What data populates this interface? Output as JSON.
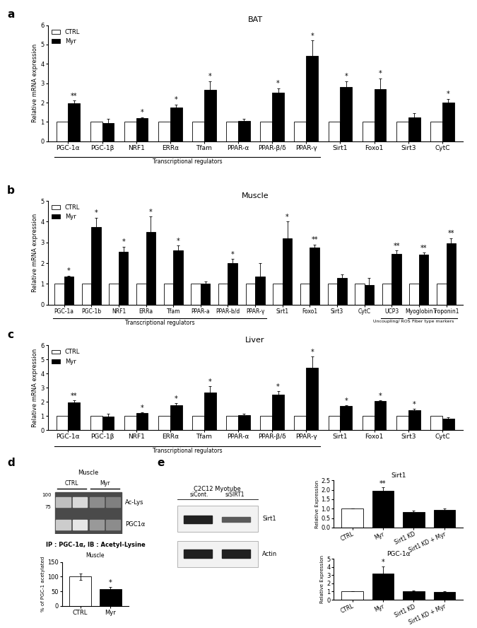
{
  "chart_data": [
    {
      "type": "bar",
      "title": "BAT",
      "annotations": [
        "a"
      ],
      "y_label": "Relative mRNA expression",
      "categories": [
        "PGC-1α",
        "PGC-1β",
        "NRF1",
        "ERRα",
        "Tfam",
        "PPAR-α",
        "PPAR-β/δ",
        "PPAR-γ",
        "Sirt1",
        "Foxo1",
        "Sirt3",
        "CytC"
      ],
      "series": [
        {
          "name": "CTRL",
          "color": "#ffffff",
          "values": [
            1,
            1,
            1,
            1,
            1,
            1,
            1,
            1,
            1,
            1,
            1,
            1
          ]
        },
        {
          "name": "Myr",
          "color": "#000000",
          "values": [
            1.95,
            0.95,
            1.2,
            1.75,
            2.65,
            1.05,
            2.5,
            4.4,
            2.8,
            2.7,
            1.25,
            2.0
          ],
          "errors": [
            0.15,
            0.2,
            0.05,
            0.15,
            0.45,
            0.1,
            0.25,
            0.8,
            0.3,
            0.55,
            0.2,
            0.2
          ],
          "significance": [
            "**",
            "",
            "*",
            "*",
            "*",
            "",
            "*",
            "*",
            "*",
            "*",
            "",
            "*"
          ]
        }
      ],
      "groups": [
        {
          "label": "Transcriptional regulators",
          "categories": [
            "PGC-1α",
            "PGC-1β",
            "NRF1",
            "ERRα",
            "Tfam",
            "PPAR-α",
            "PPAR-β/δ",
            "PPAR-γ"
          ]
        }
      ],
      "ylim": [
        0,
        6
      ],
      "yticks": [
        0,
        1,
        2,
        3,
        4,
        5,
        6
      ],
      "legend": "upper left"
    },
    {
      "type": "bar",
      "title": "Muscle",
      "annotations": [
        "b"
      ],
      "y_label": "Relative mRNA expression",
      "categories": [
        "PGC-1a",
        "PGC-1b",
        "NRF1",
        "ERRa",
        "Tfam",
        "PPAR-a",
        "PPAR-b/d",
        "PPAR-γ",
        "Sirt1",
        "Foxo1",
        "Sirt3",
        "CytC",
        "UCP3",
        "Myoglobin",
        "Troponin1"
      ],
      "series": [
        {
          "name": "CTRL",
          "color": "#ffffff",
          "values": [
            1,
            1,
            1,
            1,
            1,
            1,
            1,
            1,
            1,
            1,
            1,
            1,
            1,
            1,
            1
          ]
        },
        {
          "name": "Myr",
          "color": "#000000",
          "values": [
            1.35,
            3.75,
            2.55,
            3.5,
            2.6,
            1.0,
            2.0,
            1.35,
            3.2,
            2.75,
            1.3,
            0.95,
            2.45,
            2.4,
            2.95
          ],
          "errors": [
            0.05,
            0.45,
            0.25,
            0.75,
            0.25,
            0.1,
            0.2,
            0.65,
            0.8,
            0.15,
            0.15,
            0.35,
            0.15,
            0.1,
            0.25
          ],
          "significance": [
            "*",
            "*",
            "*",
            "*",
            "*",
            "",
            "*",
            "",
            "*",
            "**",
            "",
            "",
            "**",
            "**",
            "**"
          ]
        }
      ],
      "groups": [
        {
          "label": "Transcriptional regulators",
          "categories": [
            "PGC-1a",
            "PGC-1b",
            "NRF1",
            "ERRa",
            "Tfam",
            "PPAR-a",
            "PPAR-b/d",
            "PPAR-γ"
          ]
        },
        {
          "label": "Uncoupling/ ROS",
          "categories": [
            "UCP3"
          ]
        },
        {
          "label": "Fiber type markers",
          "categories": [
            "Myoglobin",
            "Troponin1"
          ]
        }
      ],
      "ylim": [
        0,
        5
      ],
      "yticks": [
        0,
        1,
        2,
        3,
        4,
        5
      ],
      "legend": "upper left"
    },
    {
      "type": "bar",
      "title": "Liver",
      "annotations": [
        "c"
      ],
      "y_label": "Relative mRNA expression",
      "categories": [
        "PGC-1α",
        "PGC-1β",
        "NRF1",
        "ERRα",
        "Tfam",
        "PPAR-α",
        "PPAR-β/δ",
        "PPAR-γ",
        "Sirt1",
        "Foxo1",
        "Sirt3",
        "CytC"
      ],
      "series": [
        {
          "name": "CTRL",
          "color": "#ffffff",
          "values": [
            1,
            1,
            1,
            1,
            1,
            1,
            1,
            1,
            1,
            1,
            1,
            1
          ]
        },
        {
          "name": "Myr",
          "color": "#000000",
          "values": [
            1.95,
            0.95,
            1.2,
            1.75,
            2.65,
            1.05,
            2.5,
            4.4,
            1.7,
            2.05,
            1.4,
            0.8
          ],
          "errors": [
            0.15,
            0.2,
            0.05,
            0.15,
            0.45,
            0.1,
            0.25,
            0.8,
            0.05,
            0.05,
            0.1,
            0.1
          ],
          "significance": [
            "**",
            "",
            "*",
            "*",
            "*",
            "",
            "*",
            "*",
            "*",
            "*",
            "*",
            ""
          ]
        }
      ],
      "groups": [
        {
          "label": "Transcriptional regulators",
          "categories": [
            "PGC-1α",
            "PGC-1β",
            "NRF1",
            "ERRα",
            "Tfam",
            "PPAR-α",
            "PPAR-β/δ",
            "PPAR-γ"
          ]
        }
      ],
      "ylim": [
        0,
        6
      ],
      "yticks": [
        0,
        1,
        2,
        3,
        4,
        5,
        6
      ],
      "legend": "upper left"
    },
    {
      "type": "bar",
      "title": "IP : PGC-1α, IB : Acetyl-Lysine",
      "subtitle": "Muscle",
      "y_label": "% of PGC-1 acetylated",
      "categories": [
        "CTRL",
        "Myr"
      ],
      "values": [
        100,
        58
      ],
      "errors": [
        12,
        7
      ],
      "significance": [
        "",
        "*"
      ],
      "colors": [
        "#ffffff",
        "#000000"
      ],
      "ylim": [
        0,
        150
      ],
      "yticks": [
        0,
        50,
        100,
        150
      ]
    },
    {
      "type": "bar",
      "title": "Sirt1",
      "y_label": "Relative Expression",
      "categories": [
        "CTRL",
        "Myr",
        "Sirt1 KD",
        "Sirt1 KD + Myr"
      ],
      "values": [
        1,
        1.95,
        0.83,
        0.93
      ],
      "errors": [
        0,
        0.18,
        0.07,
        0.07
      ],
      "significance": [
        "",
        "**",
        "",
        ""
      ],
      "colors": [
        "#ffffff",
        "#000000",
        "#000000",
        "#000000"
      ],
      "ylim": [
        0,
        2.5
      ],
      "yticks": [
        {
          "value": 0,
          "label": "0.0"
        },
        0.5,
        {
          "value": 1,
          "label": "1.0"
        },
        1.5,
        {
          "value": 2,
          "label": "2.0"
        },
        2.5
      ]
    },
    {
      "type": "bar",
      "title": "PGC-1α",
      "y_label": "Relative Expression",
      "categories": [
        "CTRL",
        "Myr",
        "Sirt1 KD",
        "Sirt1 KD + Myr"
      ],
      "values": [
        1,
        3.2,
        1.0,
        0.92
      ],
      "errors": [
        0,
        0.9,
        0.1,
        0.1
      ],
      "significance": [
        "",
        "*",
        "",
        ""
      ],
      "colors": [
        "#ffffff",
        "#000000",
        "#000000",
        "#000000"
      ],
      "ylim": [
        0,
        5
      ],
      "yticks": [
        0,
        1,
        2,
        3,
        4,
        5
      ]
    }
  ],
  "blots": [
    {
      "annotations": [
        "d"
      ],
      "title": "Muscle",
      "lanes": [
        "CTRL",
        "Myr"
      ],
      "rows": [
        "Ac-Lys",
        "PGC1α"
      ],
      "markers": [
        100,
        75
      ]
    },
    {
      "annotations": [
        "e"
      ],
      "title": "C2C12 Myotube",
      "lanes": [
        "siCont.",
        "siSIRT1"
      ],
      "rows": [
        "Sirt1",
        "Actin"
      ]
    }
  ]
}
